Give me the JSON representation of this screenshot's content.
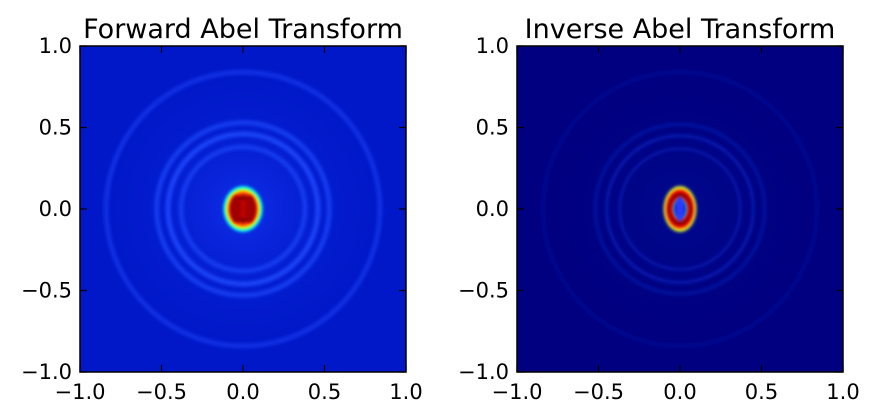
{
  "chart_data": [
    {
      "type": "heatmap",
      "title": "Forward Abel Transform",
      "xlabel": "",
      "ylabel": "",
      "xlim": [
        -1.0,
        1.0
      ],
      "ylim": [
        -1.0,
        1.0
      ],
      "x_ticks": [
        "−1.0",
        "−0.5",
        "0.0",
        "0.5",
        "1.0"
      ],
      "y_ticks": [
        "1.0",
        "0.5",
        "0.0",
        "−0.5",
        "−1.0"
      ],
      "x_tick_values": [
        -1.0,
        -0.5,
        0.0,
        0.5,
        1.0
      ],
      "y_tick_values": [
        1.0,
        0.5,
        0.0,
        -0.5,
        -1.0
      ],
      "colormap": "jet",
      "background_color": "#0018c8",
      "rings": [
        {
          "radius": 0.84,
          "intensity": 0.18
        },
        {
          "radius": 0.53,
          "intensity": 0.25
        },
        {
          "radius": 0.46,
          "intensity": 0.32
        },
        {
          "radius": 0.38,
          "intensity": 0.24
        }
      ],
      "center_blob": {
        "radius_x": 0.12,
        "radius_y": 0.14,
        "peak": "red"
      }
    },
    {
      "type": "heatmap",
      "title": "Inverse Abel Transform",
      "xlabel": "",
      "ylabel": "",
      "xlim": [
        -1.0,
        1.0
      ],
      "ylim": [
        -1.0,
        1.0
      ],
      "x_ticks": [
        "−1.0",
        "−0.5",
        "0.0",
        "0.5",
        "1.0"
      ],
      "y_ticks": [
        "1.0",
        "0.5",
        "0.0",
        "−0.5",
        "−1.0"
      ],
      "x_tick_values": [
        -1.0,
        -0.5,
        0.0,
        0.5,
        1.0
      ],
      "y_tick_values": [
        1.0,
        0.5,
        0.0,
        -0.5,
        -1.0
      ],
      "colormap": "jet",
      "background_color": "#000080",
      "rings": [
        {
          "radius": 0.84,
          "intensity": 0.08
        },
        {
          "radius": 0.52,
          "intensity": 0.14
        },
        {
          "radius": 0.45,
          "intensity": 0.2
        },
        {
          "radius": 0.37,
          "intensity": 0.16
        }
      ],
      "center_blob": {
        "radius_x": 0.1,
        "radius_y": 0.14,
        "peak": "red"
      }
    }
  ]
}
